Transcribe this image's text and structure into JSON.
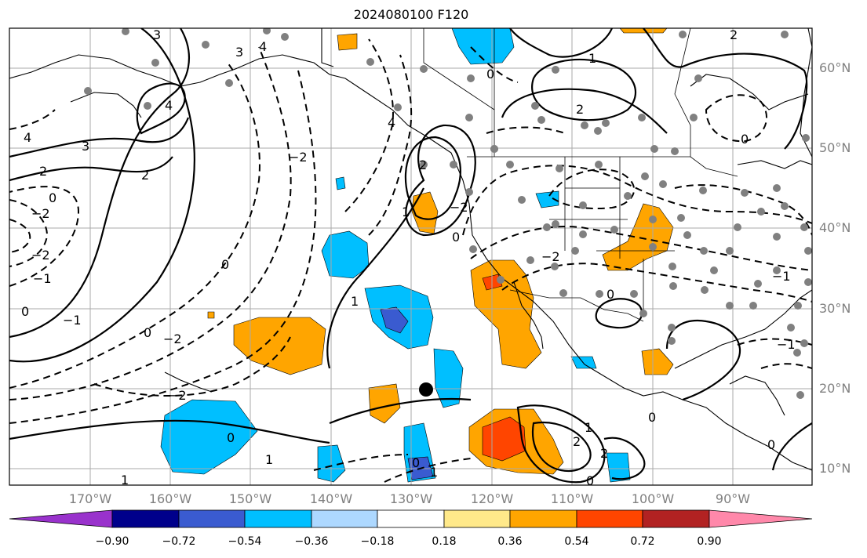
{
  "title": "2024080100 F120",
  "lat_labels": [
    "60°N",
    "50°N",
    "40°N",
    "30°N",
    "20°N",
    "10°N"
  ],
  "lon_labels": [
    "170°W",
    "160°W",
    "150°W",
    "140°W",
    "130°W",
    "120°W",
    "110°W",
    "100°W",
    "90°W"
  ],
  "colorbar": {
    "ticks": [
      "−0.90",
      "−0.72",
      "−0.54",
      "−0.36",
      "−0.18",
      "0.18",
      "0.36",
      "0.54",
      "0.72",
      "0.90"
    ],
    "colors": [
      "#9932cc",
      "#00008b",
      "#3a5bd0",
      "#00bfff",
      "#add8ff",
      "#ffffff",
      "#ffe98a",
      "#ffa500",
      "#ff4500",
      "#b22222",
      "#ff88aa"
    ]
  },
  "contour_labels": [
    "2",
    "1",
    "0",
    "−1",
    "−2",
    "3",
    "4"
  ],
  "colors": {
    "positive": "#ffa500",
    "strong_positive": "#ff4500",
    "negative": "#00bfff",
    "strong_negative": "#3a5bd0",
    "grid": "#aaaaaa",
    "station": "#808080"
  }
}
